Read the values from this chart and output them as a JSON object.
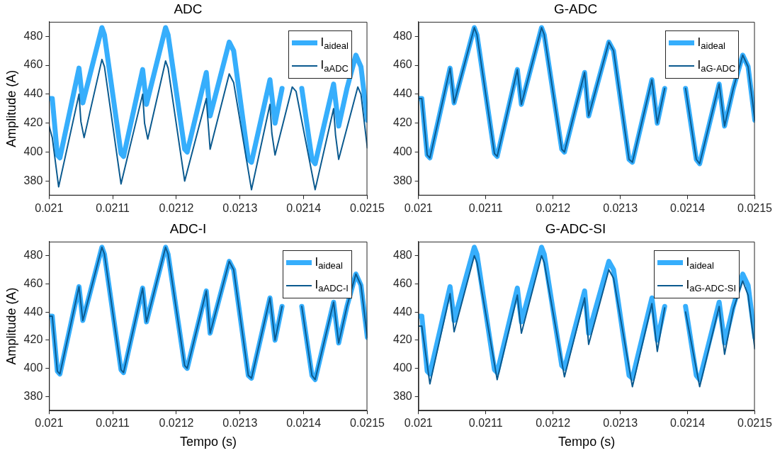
{
  "chart_data": [
    {
      "type": "line",
      "title": "ADC",
      "ylabel": "Amplitude (A)",
      "xlim": [
        0.021,
        0.0215
      ],
      "xticks": [
        0.021,
        0.0211,
        0.0212,
        0.0213,
        0.0214,
        0.0215
      ],
      "ylim": [
        370,
        490
      ],
      "yticks": [
        380,
        400,
        420,
        440,
        460,
        480
      ],
      "legend": "top right",
      "series": [
        {
          "name": "I$_{aideal}$",
          "color": "#36aefc",
          "x": [
            0.021,
            0.021005,
            0.021013,
            0.021017,
            0.021047,
            0.021053,
            0.021083,
            0.021087,
            0.021113,
            0.021117,
            0.021147,
            0.021153,
            0.021183,
            0.021187,
            0.021213,
            0.021217,
            0.021247,
            0.021253,
            0.021283,
            0.02129,
            0.021313,
            0.021318,
            0.021347,
            0.021355,
            0.021366,
            0.021385,
            0.021397,
            0.021413,
            0.021418,
            0.021447,
            0.021455,
            0.021468,
            0.021482,
            0.02149,
            0.0215
          ],
          "values": [
            437,
            437,
            398,
            396,
            458,
            434,
            486,
            481,
            399,
            397,
            457,
            433,
            486,
            481,
            402,
            400,
            455,
            425,
            476,
            470,
            395,
            393,
            450,
            420,
            444,
            null,
            444,
            395,
            392,
            447,
            418,
            444,
            467,
            459,
            422
          ]
        },
        {
          "name": "I$_{aADC}$",
          "color": "#0b5a8f",
          "x": [
            0.021,
            0.021005,
            0.021015,
            0.021047,
            0.02105,
            0.021055,
            0.021083,
            0.021087,
            0.021113,
            0.021147,
            0.02115,
            0.021155,
            0.021183,
            0.021187,
            0.021213,
            0.021247,
            0.021253,
            0.021283,
            0.02129,
            0.021318,
            0.021347,
            0.02135,
            0.021355,
            0.021382,
            0.021388,
            0.021418,
            0.021447,
            0.02145,
            0.021455,
            0.021485,
            0.02149,
            0.0215
          ],
          "values": [
            418,
            410,
            376,
            440,
            421,
            410,
            464,
            459,
            378,
            440,
            420,
            409,
            463,
            458,
            380,
            437,
            402,
            454,
            448,
            374,
            433,
            413,
            398,
            445,
            442,
            374,
            430,
            412,
            395,
            445,
            440,
            403
          ]
        }
      ]
    },
    {
      "type": "line",
      "title": "G-ADC",
      "xlim": [
        0.021,
        0.0215
      ],
      "xticks": [
        0.021,
        0.0211,
        0.0212,
        0.0213,
        0.0214,
        0.0215
      ],
      "ylim": [
        370,
        490
      ],
      "yticks": [
        380,
        400,
        420,
        440,
        460,
        480
      ],
      "legend": "top right",
      "series": [
        {
          "name": "I$_{aideal}$",
          "color": "#36aefc",
          "x": [
            0.021,
            0.021005,
            0.021013,
            0.021017,
            0.021047,
            0.021053,
            0.021083,
            0.021087,
            0.021113,
            0.021117,
            0.021147,
            0.021153,
            0.021183,
            0.021187,
            0.021213,
            0.021217,
            0.021247,
            0.021253,
            0.021283,
            0.02129,
            0.021313,
            0.021318,
            0.021347,
            0.021355,
            0.021366,
            0.021385,
            0.021397,
            0.021413,
            0.021418,
            0.021447,
            0.021455,
            0.021468,
            0.021482,
            0.02149,
            0.0215
          ],
          "values": [
            437,
            437,
            398,
            396,
            458,
            434,
            486,
            481,
            399,
            397,
            457,
            433,
            486,
            481,
            402,
            400,
            455,
            425,
            476,
            470,
            395,
            393,
            450,
            420,
            444,
            null,
            444,
            395,
            392,
            447,
            418,
            444,
            467,
            459,
            422
          ]
        },
        {
          "name": "I$_{aG-ADC}$",
          "color": "#0b5a8f",
          "x": [
            0.021,
            0.021005,
            0.021013,
            0.021017,
            0.021047,
            0.021053,
            0.021083,
            0.021087,
            0.021113,
            0.021117,
            0.021147,
            0.021153,
            0.021183,
            0.021187,
            0.021213,
            0.021217,
            0.021247,
            0.021253,
            0.021283,
            0.02129,
            0.021313,
            0.021318,
            0.021347,
            0.021355,
            0.021366,
            0.021385,
            0.021397,
            0.021413,
            0.021418,
            0.021447,
            0.021455,
            0.021468,
            0.021482,
            0.02149,
            0.0215
          ],
          "values": [
            437,
            437,
            398,
            396,
            458,
            434,
            486,
            481,
            399,
            397,
            457,
            433,
            486,
            481,
            402,
            400,
            455,
            425,
            476,
            470,
            395,
            393,
            450,
            420,
            444,
            null,
            444,
            395,
            392,
            447,
            418,
            444,
            467,
            459,
            422
          ]
        }
      ]
    },
    {
      "type": "line",
      "title": "ADC-I",
      "xlabel": "Tempo (s)",
      "ylabel": "Amplitude (A)",
      "xlim": [
        0.021,
        0.0215
      ],
      "xticks": [
        0.021,
        0.0211,
        0.0212,
        0.0213,
        0.0214,
        0.0215
      ],
      "ylim": [
        370,
        490
      ],
      "yticks": [
        380,
        400,
        420,
        440,
        460,
        480
      ],
      "legend": "top right",
      "series": [
        {
          "name": "I$_{aideal}$",
          "color": "#36aefc",
          "x": [
            0.021,
            0.021005,
            0.021013,
            0.021017,
            0.021047,
            0.021053,
            0.021083,
            0.021087,
            0.021113,
            0.021117,
            0.021147,
            0.021153,
            0.021183,
            0.021187,
            0.021213,
            0.021217,
            0.021247,
            0.021253,
            0.021283,
            0.02129,
            0.021313,
            0.021318,
            0.021347,
            0.021355,
            0.021366,
            0.021385,
            0.021397,
            0.021413,
            0.021418,
            0.021447,
            0.021455,
            0.021468,
            0.021482,
            0.02149,
            0.0215
          ],
          "values": [
            437,
            437,
            398,
            396,
            458,
            434,
            486,
            481,
            399,
            397,
            457,
            433,
            486,
            481,
            402,
            400,
            455,
            425,
            476,
            470,
            395,
            393,
            450,
            420,
            444,
            null,
            444,
            395,
            392,
            447,
            418,
            444,
            467,
            459,
            422
          ]
        },
        {
          "name": "I$_{aADC-I}$",
          "color": "#0b5a8f",
          "x": [
            0.021,
            0.021005,
            0.021013,
            0.021017,
            0.021047,
            0.021053,
            0.021083,
            0.021087,
            0.021113,
            0.021117,
            0.021147,
            0.021153,
            0.021183,
            0.021187,
            0.021213,
            0.021217,
            0.021247,
            0.021253,
            0.021283,
            0.02129,
            0.021313,
            0.021318,
            0.021347,
            0.021355,
            0.021366,
            0.021385,
            0.021397,
            0.021413,
            0.021418,
            0.021447,
            0.021455,
            0.021468,
            0.021482,
            0.02149,
            0.0215
          ],
          "values": [
            437,
            437,
            398,
            396,
            458,
            434,
            486,
            481,
            399,
            397,
            457,
            433,
            486,
            481,
            402,
            400,
            455,
            425,
            476,
            470,
            395,
            393,
            450,
            420,
            444,
            null,
            444,
            395,
            392,
            447,
            418,
            444,
            467,
            459,
            422
          ]
        }
      ]
    },
    {
      "type": "line",
      "title": "G-ADC-SI",
      "xlabel": "Tempo (s)",
      "xlim": [
        0.021,
        0.0215
      ],
      "xticks": [
        0.021,
        0.0211,
        0.0212,
        0.0213,
        0.0214,
        0.0215
      ],
      "ylim": [
        370,
        490
      ],
      "yticks": [
        380,
        400,
        420,
        440,
        460,
        480
      ],
      "legend": "top right",
      "series": [
        {
          "name": "I$_{aideal}$",
          "color": "#36aefc",
          "x": [
            0.021,
            0.021005,
            0.021013,
            0.021017,
            0.021047,
            0.021053,
            0.021083,
            0.021087,
            0.021113,
            0.021117,
            0.021147,
            0.021153,
            0.021183,
            0.021187,
            0.021213,
            0.021217,
            0.021247,
            0.021253,
            0.021283,
            0.02129,
            0.021313,
            0.021318,
            0.021347,
            0.021355,
            0.021366,
            0.021385,
            0.021397,
            0.021413,
            0.021418,
            0.021447,
            0.021455,
            0.021468,
            0.021482,
            0.02149,
            0.0215
          ],
          "values": [
            437,
            437,
            398,
            396,
            458,
            434,
            486,
            481,
            399,
            397,
            457,
            433,
            486,
            481,
            402,
            400,
            455,
            425,
            476,
            470,
            395,
            393,
            450,
            420,
            444,
            null,
            444,
            395,
            392,
            447,
            418,
            444,
            467,
            459,
            422
          ]
        },
        {
          "name": "I$_{aG-ADC-SI}$",
          "color": "#0b5a8f",
          "x": [
            0.021,
            0.021005,
            0.021017,
            0.021047,
            0.021053,
            0.021083,
            0.021087,
            0.021117,
            0.021147,
            0.021153,
            0.021183,
            0.021187,
            0.021217,
            0.021247,
            0.021253,
            0.021283,
            0.02129,
            0.021318,
            0.021347,
            0.021355,
            0.021366,
            0.021385,
            0.021397,
            0.021418,
            0.021447,
            0.021455,
            0.021468,
            0.021482,
            0.02149,
            0.0215
          ],
          "values": [
            430,
            430,
            389,
            453,
            426,
            480,
            475,
            392,
            452,
            425,
            480,
            475,
            394,
            450,
            417,
            470,
            464,
            387,
            446,
            412,
            443,
            null,
            440,
            387,
            444,
            410,
            442,
            462,
            452,
            414
          ]
        }
      ]
    }
  ]
}
